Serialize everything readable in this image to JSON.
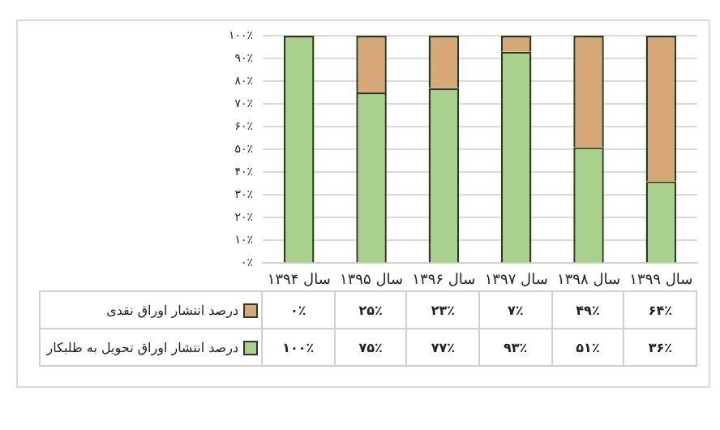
{
  "chart_data": {
    "type": "bar",
    "stacked": true,
    "categories": [
      "سال ۱۳۹۴",
      "سال ۱۳۹۵",
      "سال ۱۳۹۶",
      "سال ۱۳۹۷",
      "سال ۱۳۹۸",
      "سال ۱۳۹۹"
    ],
    "series": [
      {
        "name": "درصد انتشار اوراق تحویل به طلبکار",
        "color": "#a9d18e",
        "values": [
          100,
          75,
          77,
          93,
          51,
          36
        ],
        "value_labels": [
          "۱۰۰٪",
          "۷۵٪",
          "۷۷٪",
          "۹۳٪",
          "۵۱٪",
          "۳۶٪"
        ]
      },
      {
        "name": "درصد انتشار اوراق نقدی",
        "color": "#d6a878",
        "values": [
          0,
          25,
          23,
          7,
          49,
          64
        ],
        "value_labels": [
          "۰٪",
          "۲۵٪",
          "۲۳٪",
          "۷٪",
          "۴۹٪",
          "۶۴٪"
        ]
      }
    ],
    "ylim": [
      0,
      100
    ],
    "yticks": [
      {
        "value": 0,
        "label": "۰٪"
      },
      {
        "value": 10,
        "label": "۱۰٪"
      },
      {
        "value": 20,
        "label": "۲۰٪"
      },
      {
        "value": 30,
        "label": "۳۰٪"
      },
      {
        "value": 40,
        "label": "۴۰٪"
      },
      {
        "value": 50,
        "label": "۵۰٪"
      },
      {
        "value": 60,
        "label": "۶۰٪"
      },
      {
        "value": 70,
        "label": "۷۰٪"
      },
      {
        "value": 80,
        "label": "۸۰٪"
      },
      {
        "value": 90,
        "label": "۹۰٪"
      },
      {
        "value": 100,
        "label": "۱۰۰٪"
      }
    ],
    "grid": "y",
    "legend": "bottom"
  }
}
